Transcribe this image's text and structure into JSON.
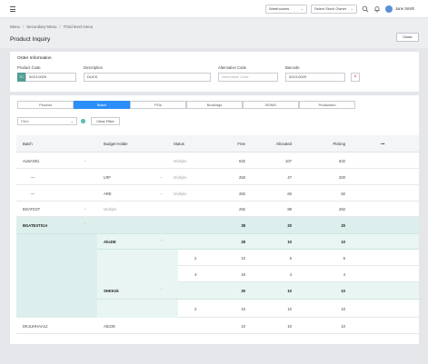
{
  "topbar": {
    "warehouse_select": "Warehouses",
    "stock_owner_select": "Select Stock Owner",
    "user_name": "Jane Smith"
  },
  "breadcrumb": [
    "Menu",
    "Secondary Menu",
    "Third level menu"
  ],
  "page_title": "Product Inquiry",
  "close_label": "Close",
  "order": {
    "title": "Order Information",
    "product_code_label": "Product Code",
    "product_code_tag": "TC",
    "product_code_value": "0013-0029",
    "description_label": "Description",
    "description_value": "DUCK",
    "alt_code_label": "Alternative Code",
    "alt_code_placeholder": "Alternative Code",
    "barcode_label": "Barcode",
    "barcode_value": "0013-0029",
    "clear_icon": "×"
  },
  "tabs": [
    "Product",
    "Batch",
    "POs",
    "Bookings",
    "BOMS",
    "Production"
  ],
  "active_tab": "Batch",
  "filter": {
    "placeholder": "Filter",
    "clear_label": "Clear Filter"
  },
  "table": {
    "headers": {
      "batch": "Batch",
      "budget_holder": "Budget Holder",
      "status": "Status",
      "free": "Free",
      "allocated": "Allocated",
      "picking": "Picking",
      "more": "•••"
    },
    "rows": [
      {
        "batch": "ALBAN01",
        "holder": "",
        "status": "Multiple",
        "free": "632",
        "allocated": "107",
        "picking": "632"
      },
      {
        "batch": "—",
        "holder": "LRF",
        "status": "Multiple",
        "free": "250",
        "allocated": "47",
        "picking": "200"
      },
      {
        "batch": "—",
        "holder": "ARE",
        "status": "Multiple",
        "free": "282",
        "allocated": "60",
        "picking": "82"
      },
      {
        "batch": "BGATEST",
        "holder": "",
        "status": "Multiple",
        "free": "282",
        "allocated": "89",
        "picking": "282"
      },
      {
        "batch": "BGATEST01A",
        "holder": "",
        "status": "",
        "free": "38",
        "allocated": "20",
        "picking": "20"
      },
      {
        "batch": "",
        "holder": "AbcDE",
        "status": "",
        "free": "28",
        "allocated": "10",
        "picking": "10"
      },
      {
        "batch": "",
        "holder": "",
        "status": "2",
        "free": "10",
        "allocated": "6",
        "picking": "6"
      },
      {
        "batch": "",
        "holder": "",
        "status": "4",
        "free": "19",
        "allocated": "4",
        "picking": "4"
      },
      {
        "batch": "",
        "holder": "SHKKnk",
        "status": "",
        "free": "30",
        "allocated": "10",
        "picking": "10"
      },
      {
        "batch": "",
        "holder": "",
        "status": "2",
        "free": "10",
        "allocated": "10",
        "picking": "10"
      },
      {
        "batch": "",
        "holder": "",
        "status": "4",
        "free": "10",
        "allocated": "10",
        "picking": "10"
      },
      {
        "batch": "DK1UHHAA12",
        "holder": "AbcDE",
        "status": "",
        "free": "10",
        "allocated": "10",
        "picking": "10"
      }
    ]
  },
  "colors": {
    "accent": "#2c8ef8",
    "teal_tag": "#4f9f96",
    "expanded_bg": "#dcefec",
    "clear_red": "#d9534f"
  }
}
